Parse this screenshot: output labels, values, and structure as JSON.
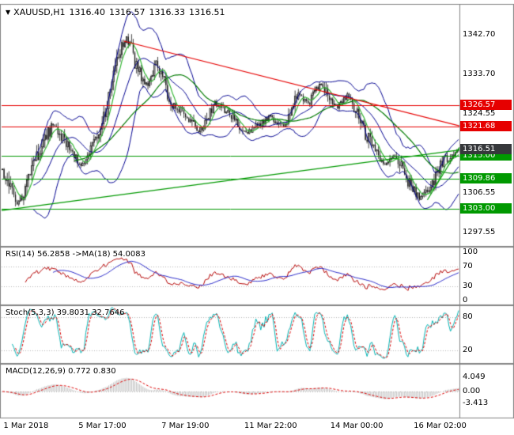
{
  "header": {
    "dropdown_icon": "▼",
    "symbol_period": "XAUUSD,H1",
    "open": "1316.40",
    "high": "1316.57",
    "low": "1316.33",
    "close": "1316.51"
  },
  "indicator_labels": {
    "rsi": "RSI(14) 56.2858 ->MA(18) 54.0083",
    "stoch": "Stoch(5,3,3) 39.8031 32.7646",
    "macd": "MACD(12,26,9) 0.772 0.830"
  },
  "colors": {
    "candle": "#141414",
    "bollinger": "#000090",
    "ma_green": "#007a00",
    "ma_light_green": "#33b533",
    "level_red": "#e60000",
    "level_green": "#009900",
    "current_price_bg": "#36383b",
    "trend_red": "#e60000",
    "trend_green": "#009900",
    "rsi_line": "#b40000",
    "rsi_ma": "#2828c8",
    "stoch_k": "#00b2b2",
    "stoch_d": "#dc0000",
    "macd_hist": "#bdbdbd",
    "macd_signal": "#dc0000",
    "panel_border": "#828282",
    "grid_line": "#b4b4b4"
  },
  "chart_data": {
    "type": "candlestick",
    "title": "XAUUSD,H1",
    "symbol": "XAUUSD",
    "timeframe": "H1",
    "last_ohlc": {
      "open": 1316.4,
      "high": 1316.57,
      "low": 1316.33,
      "close": 1316.51
    },
    "y_axis": {
      "min": 1294.5,
      "max": 1349.5,
      "ticks": [
        {
          "label": "1342.70",
          "value": 1342.7
        },
        {
          "label": "1333.70",
          "value": 1333.7
        },
        {
          "label": "1324.55",
          "value": 1324.55
        },
        {
          "label": "1306.55",
          "value": 1306.55
        },
        {
          "label": "1297.55",
          "value": 1297.55
        }
      ]
    },
    "x_axis": {
      "ticks": [
        {
          "label": "1 Mar 2018",
          "pos": 0.004
        },
        {
          "label": "5 Mar 17:00",
          "pos": 0.168
        },
        {
          "label": "7 Mar 19:00",
          "pos": 0.349
        },
        {
          "label": "11 Mar 22:00",
          "pos": 0.53
        },
        {
          "label": "14 Mar 00:00",
          "pos": 0.718
        },
        {
          "label": "16 Mar 02:00",
          "pos": 0.9
        }
      ]
    },
    "levels": [
      {
        "label": "1326.57",
        "value": 1326.57,
        "color": "red"
      },
      {
        "label": "1321.68",
        "value": 1321.68,
        "color": "red"
      },
      {
        "label": "1315.00",
        "value": 1315.0,
        "color": "green"
      },
      {
        "label": "1309.86",
        "value": 1309.86,
        "color": "green"
      },
      {
        "label": "1303.00",
        "value": 1303.0,
        "color": "green"
      }
    ],
    "current_price": {
      "label": "1316.51",
      "value": 1316.51
    },
    "trendlines": [
      {
        "x1": 0.267,
        "p1": 1341.2,
        "x2": 1.0,
        "p2": 1321.9,
        "color": "red"
      },
      {
        "x1": 0.0,
        "p1": 1302.6,
        "x2": 1.0,
        "p2": 1316.4,
        "color": "green"
      },
      {
        "x1": 0.93,
        "p1": 1305.0,
        "x2": 1.0,
        "p2": 1317.0,
        "color": "green"
      }
    ],
    "candles_count": 280,
    "price_path_anchors": [
      [
        0,
        1312
      ],
      [
        0.034,
        1304
      ],
      [
        0.078,
        1315
      ],
      [
        0.112,
        1322.5
      ],
      [
        0.138,
        1318
      ],
      [
        0.172,
        1313
      ],
      [
        0.216,
        1320
      ],
      [
        0.241,
        1334
      ],
      [
        0.272,
        1342.4
      ],
      [
        0.293,
        1336
      ],
      [
        0.319,
        1330.5
      ],
      [
        0.336,
        1336.5
      ],
      [
        0.371,
        1327
      ],
      [
        0.405,
        1324.5
      ],
      [
        0.431,
        1320.5
      ],
      [
        0.466,
        1327
      ],
      [
        0.5,
        1324.5
      ],
      [
        0.534,
        1320
      ],
      [
        0.552,
        1321.5
      ],
      [
        0.586,
        1324
      ],
      [
        0.621,
        1321.5
      ],
      [
        0.647,
        1329.5
      ],
      [
        0.672,
        1327
      ],
      [
        0.698,
        1331.5
      ],
      [
        0.733,
        1326
      ],
      [
        0.759,
        1329
      ],
      [
        0.784,
        1323
      ],
      [
        0.81,
        1317
      ],
      [
        0.836,
        1312.5
      ],
      [
        0.862,
        1315.5
      ],
      [
        0.888,
        1309.5
      ],
      [
        0.914,
        1305.5
      ],
      [
        0.94,
        1308
      ],
      [
        0.966,
        1313.5
      ],
      [
        0.985,
        1315.5
      ],
      [
        1,
        1316.5
      ]
    ],
    "overlays": {
      "bollinger": {
        "period": 20,
        "deviation": 2
      },
      "ma_slow_period": 45,
      "ma_fast_period": 7
    },
    "indicators": {
      "rsi": {
        "period": 14,
        "ma_period": 18,
        "last": 56.2858,
        "ma_last": 54.0083,
        "range": [
          0,
          100
        ],
        "grid": [
          70,
          30
        ],
        "ticks": [
          {
            "label": "100",
            "value": 100
          },
          {
            "label": "70",
            "value": 70
          },
          {
            "label": "30",
            "value": 30
          },
          {
            "label": "0",
            "value": 0
          }
        ]
      },
      "stoch": {
        "k": 5,
        "d": 3,
        "slowing": 3,
        "last": 39.8031,
        "signal_last": 32.7646,
        "range": [
          0,
          100
        ],
        "grid": [
          80,
          20
        ],
        "ticks": [
          {
            "label": "80",
            "value": 80
          },
          {
            "label": "20",
            "value": 20
          }
        ]
      },
      "macd": {
        "fast": 12,
        "slow": 26,
        "signal": 9,
        "last": 0.772,
        "signal_last": 0.83,
        "grid": [
          0
        ],
        "ticks": [
          {
            "label": "4.049",
            "value": 4.049
          },
          {
            "label": "0.00",
            "value": 0
          },
          {
            "label": "-3.413",
            "value": -3.413
          }
        ]
      }
    }
  }
}
